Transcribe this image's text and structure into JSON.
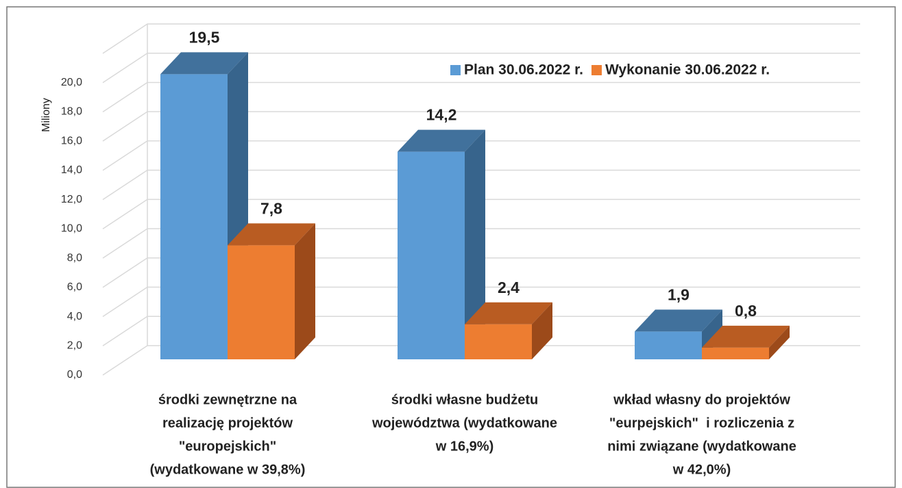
{
  "chart_data": {
    "type": "bar3d",
    "y_label": "Miliony",
    "categories": [
      [
        "środki zewnętrzne na",
        "realizację projektów",
        "\"europejskich\"",
        "(wydatkowane w 39,8%)"
      ],
      [
        "środki własne budżetu",
        "województwa (wydatkowane",
        "w 16,9%)"
      ],
      [
        "wkład własny do projektów",
        "\"eurpejskich\"  i rozliczenia z",
        "nimi związane (wydatkowane",
        "w 42,0%)"
      ]
    ],
    "series": [
      {
        "name": "Plan 30.06.2022 r.",
        "color": "#5b9bd5",
        "top_color": "#41719c",
        "side_color": "#37648c",
        "values": [
          19.5,
          14.2,
          1.9
        ],
        "value_labels": [
          "19,5",
          "14,2",
          "1,9"
        ]
      },
      {
        "name": "Wykonanie 30.06.2022 r.",
        "color": "#ed7d31",
        "top_color": "#b95c22",
        "side_color": "#9c4a1a",
        "values": [
          7.8,
          2.4,
          0.8
        ],
        "value_labels": [
          "7,8",
          "2,4",
          "0,8"
        ]
      }
    ],
    "ylim": [
      0,
      22
    ],
    "yticks": [
      {
        "value": 0,
        "label": "0,0"
      },
      {
        "value": 2,
        "label": "2,0"
      },
      {
        "value": 4,
        "label": "4,0"
      },
      {
        "value": 6,
        "label": "6,0"
      },
      {
        "value": 8,
        "label": "8,0"
      },
      {
        "value": 10,
        "label": "10,0"
      },
      {
        "value": 12,
        "label": "12,0"
      },
      {
        "value": 14,
        "label": "14,0"
      },
      {
        "value": 16,
        "label": "16,0"
      },
      {
        "value": 18,
        "label": "18,0"
      },
      {
        "value": 20,
        "label": "20,0"
      }
    ],
    "grid": true,
    "legend": "top-right"
  }
}
